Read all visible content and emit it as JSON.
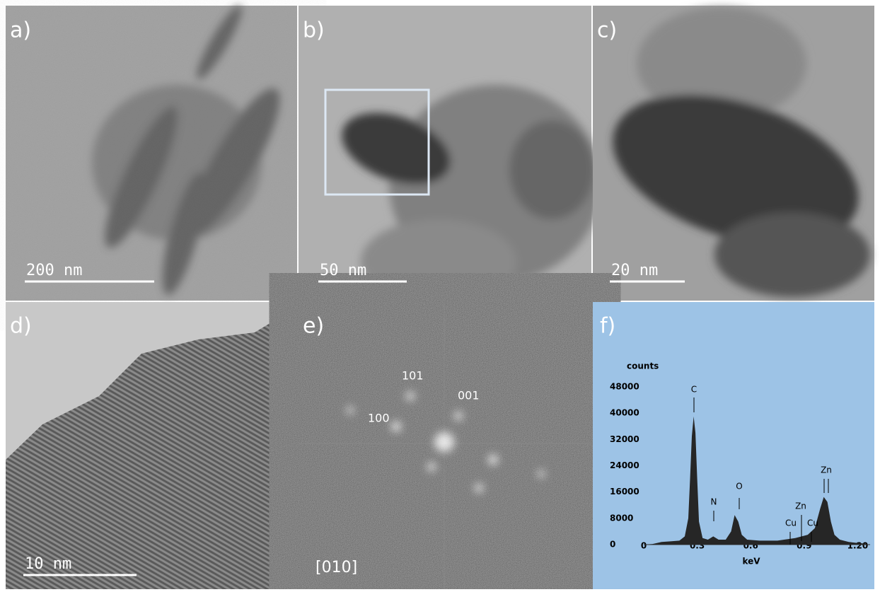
{
  "panels": [
    {
      "label": "a)",
      "scale_bar": "200 nm"
    },
    {
      "label": "b)",
      "scale_bar": "50 nm"
    },
    {
      "label": "c)",
      "scale_bar": "20 nm"
    },
    {
      "label": "d)",
      "scale_bar": "10 nm"
    },
    {
      "label": "e)",
      "spots": [
        "101",
        "001",
        "100"
      ],
      "zone_axis": "[010]"
    },
    {
      "label": "f)"
    }
  ],
  "chart_data": {
    "type": "area",
    "y_label": "counts",
    "x_label": "keV",
    "color": "#262626",
    "x": [
      0,
      0.05,
      0.1,
      0.15,
      0.2,
      0.23,
      0.25,
      0.26,
      0.27,
      0.28,
      0.29,
      0.3,
      0.31,
      0.33,
      0.36,
      0.39,
      0.42,
      0.46,
      0.49,
      0.51,
      0.53,
      0.55,
      0.58,
      0.65,
      0.75,
      0.85,
      0.92,
      0.96,
      0.99,
      1.01,
      1.03,
      1.05,
      1.07,
      1.1,
      1.15,
      1.2,
      1.25
    ],
    "values": [
      0,
      200,
      800,
      1000,
      1200,
      2500,
      8000,
      20000,
      33000,
      39000,
      34000,
      20000,
      7000,
      2000,
      1500,
      2500,
      1500,
      1500,
      4000,
      9000,
      7000,
      3000,
      1500,
      1200,
      1200,
      2000,
      3000,
      5000,
      11000,
      14500,
      13000,
      7000,
      3000,
      1500,
      800,
      500,
      300
    ],
    "xlim": [
      0,
      1.27
    ],
    "xticks": [
      0,
      0.3,
      0.6,
      0.9,
      {
        "value": 1.2,
        "label": "1.20"
      }
    ],
    "ylim": [
      0,
      48000
    ],
    "yticks": [
      0,
      8000,
      16000,
      24000,
      32000,
      40000,
      48000
    ],
    "annotations": [
      "C",
      "N",
      "O",
      "Cu",
      "Zn",
      "Cu",
      "Zn"
    ]
  }
}
